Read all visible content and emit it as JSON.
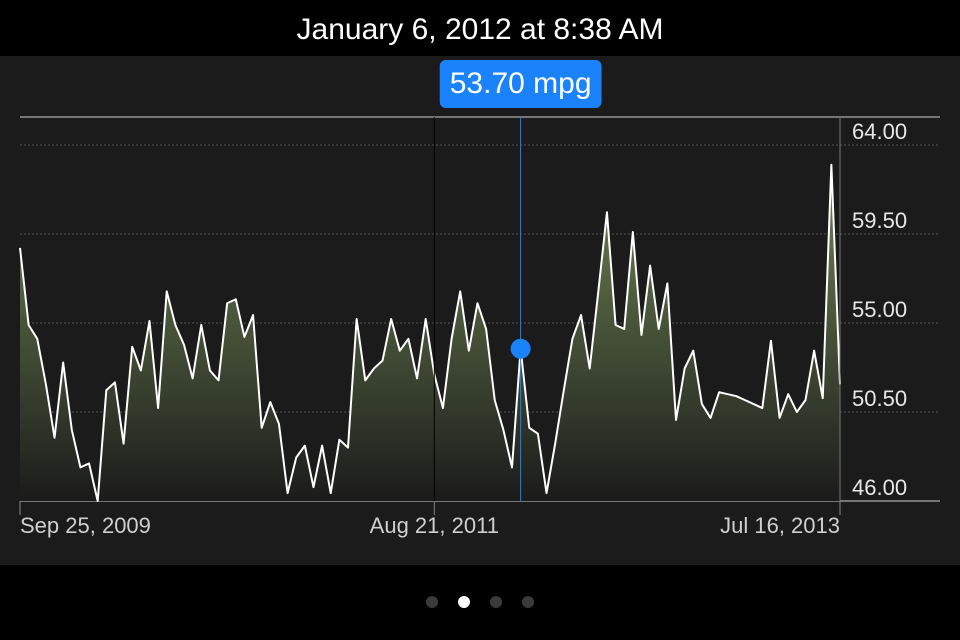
{
  "chart_data": {
    "type": "area",
    "title": "January 6, 2012 at 8:38 AM",
    "categories": [
      "Sep 25, 2009",
      null,
      null,
      null,
      null,
      null,
      null,
      null,
      null,
      null,
      null,
      null,
      null,
      null,
      null,
      null,
      null,
      null,
      null,
      null,
      null,
      null,
      null,
      null,
      null,
      null,
      null,
      null,
      null,
      null,
      null,
      null,
      null,
      null,
      null,
      null,
      null,
      null,
      null,
      null,
      null,
      null,
      null,
      null,
      null,
      null,
      null,
      null,
      "Aug 21, 2011",
      null,
      null,
      null,
      null,
      null,
      null,
      null,
      null,
      null,
      null,
      null,
      null,
      null,
      null,
      null,
      null,
      null,
      null,
      null,
      null,
      null,
      null,
      null,
      null,
      null,
      null,
      null,
      null,
      null,
      null,
      null,
      null,
      null,
      null,
      null,
      null,
      null,
      null,
      null,
      null,
      null,
      null,
      null,
      null,
      null,
      null,
      "Jul 16, 2013"
    ],
    "values": [
      58.8,
      54.9,
      54.2,
      51.9,
      49.2,
      53.0,
      49.6,
      47.7,
      47.9,
      46.0,
      51.6,
      52.0,
      48.9,
      53.8,
      52.6,
      55.1,
      50.7,
      56.6,
      54.9,
      53.9,
      52.2,
      54.9,
      52.6,
      52.1,
      56.0,
      56.2,
      54.3,
      55.4,
      49.7,
      51.0,
      49.9,
      46.4,
      48.2,
      48.8,
      46.7,
      48.8,
      46.4,
      49.1,
      48.7,
      55.2,
      52.1,
      52.7,
      53.1,
      55.2,
      53.6,
      54.2,
      52.2,
      55.2,
      52.4,
      50.7,
      54.2,
      56.6,
      53.6,
      56.0,
      54.7,
      51.1,
      49.6,
      47.7,
      53.7,
      49.7,
      49.4,
      46.4,
      48.9,
      51.6,
      54.2,
      55.4,
      52.7,
      56.6,
      60.6,
      54.9,
      54.7,
      59.6,
      54.4,
      57.9,
      54.7,
      57.0,
      50.1,
      52.7,
      53.6,
      50.9,
      50.2,
      51.5,
      51.4,
      51.3,
      51.1,
      50.9,
      50.7,
      54.1,
      50.2,
      51.4,
      50.5,
      51.1,
      53.6,
      51.2,
      63.0,
      51.9
    ],
    "color": "#ffffff",
    "area_color": "#728a55",
    "ylim": [
      46,
      64
    ],
    "yticks": [
      {
        "value": 46,
        "label": "46.00"
      },
      {
        "value": 50.5,
        "label": "50.50"
      },
      {
        "value": 55,
        "label": "55.00"
      },
      {
        "value": 59.5,
        "label": "59.50"
      },
      {
        "value": 64,
        "label": "64.00"
      }
    ],
    "grid": true,
    "annotation": {
      "value": 53.7,
      "label": "53.70 mpg",
      "color": "#1a82fb"
    }
  }
}
